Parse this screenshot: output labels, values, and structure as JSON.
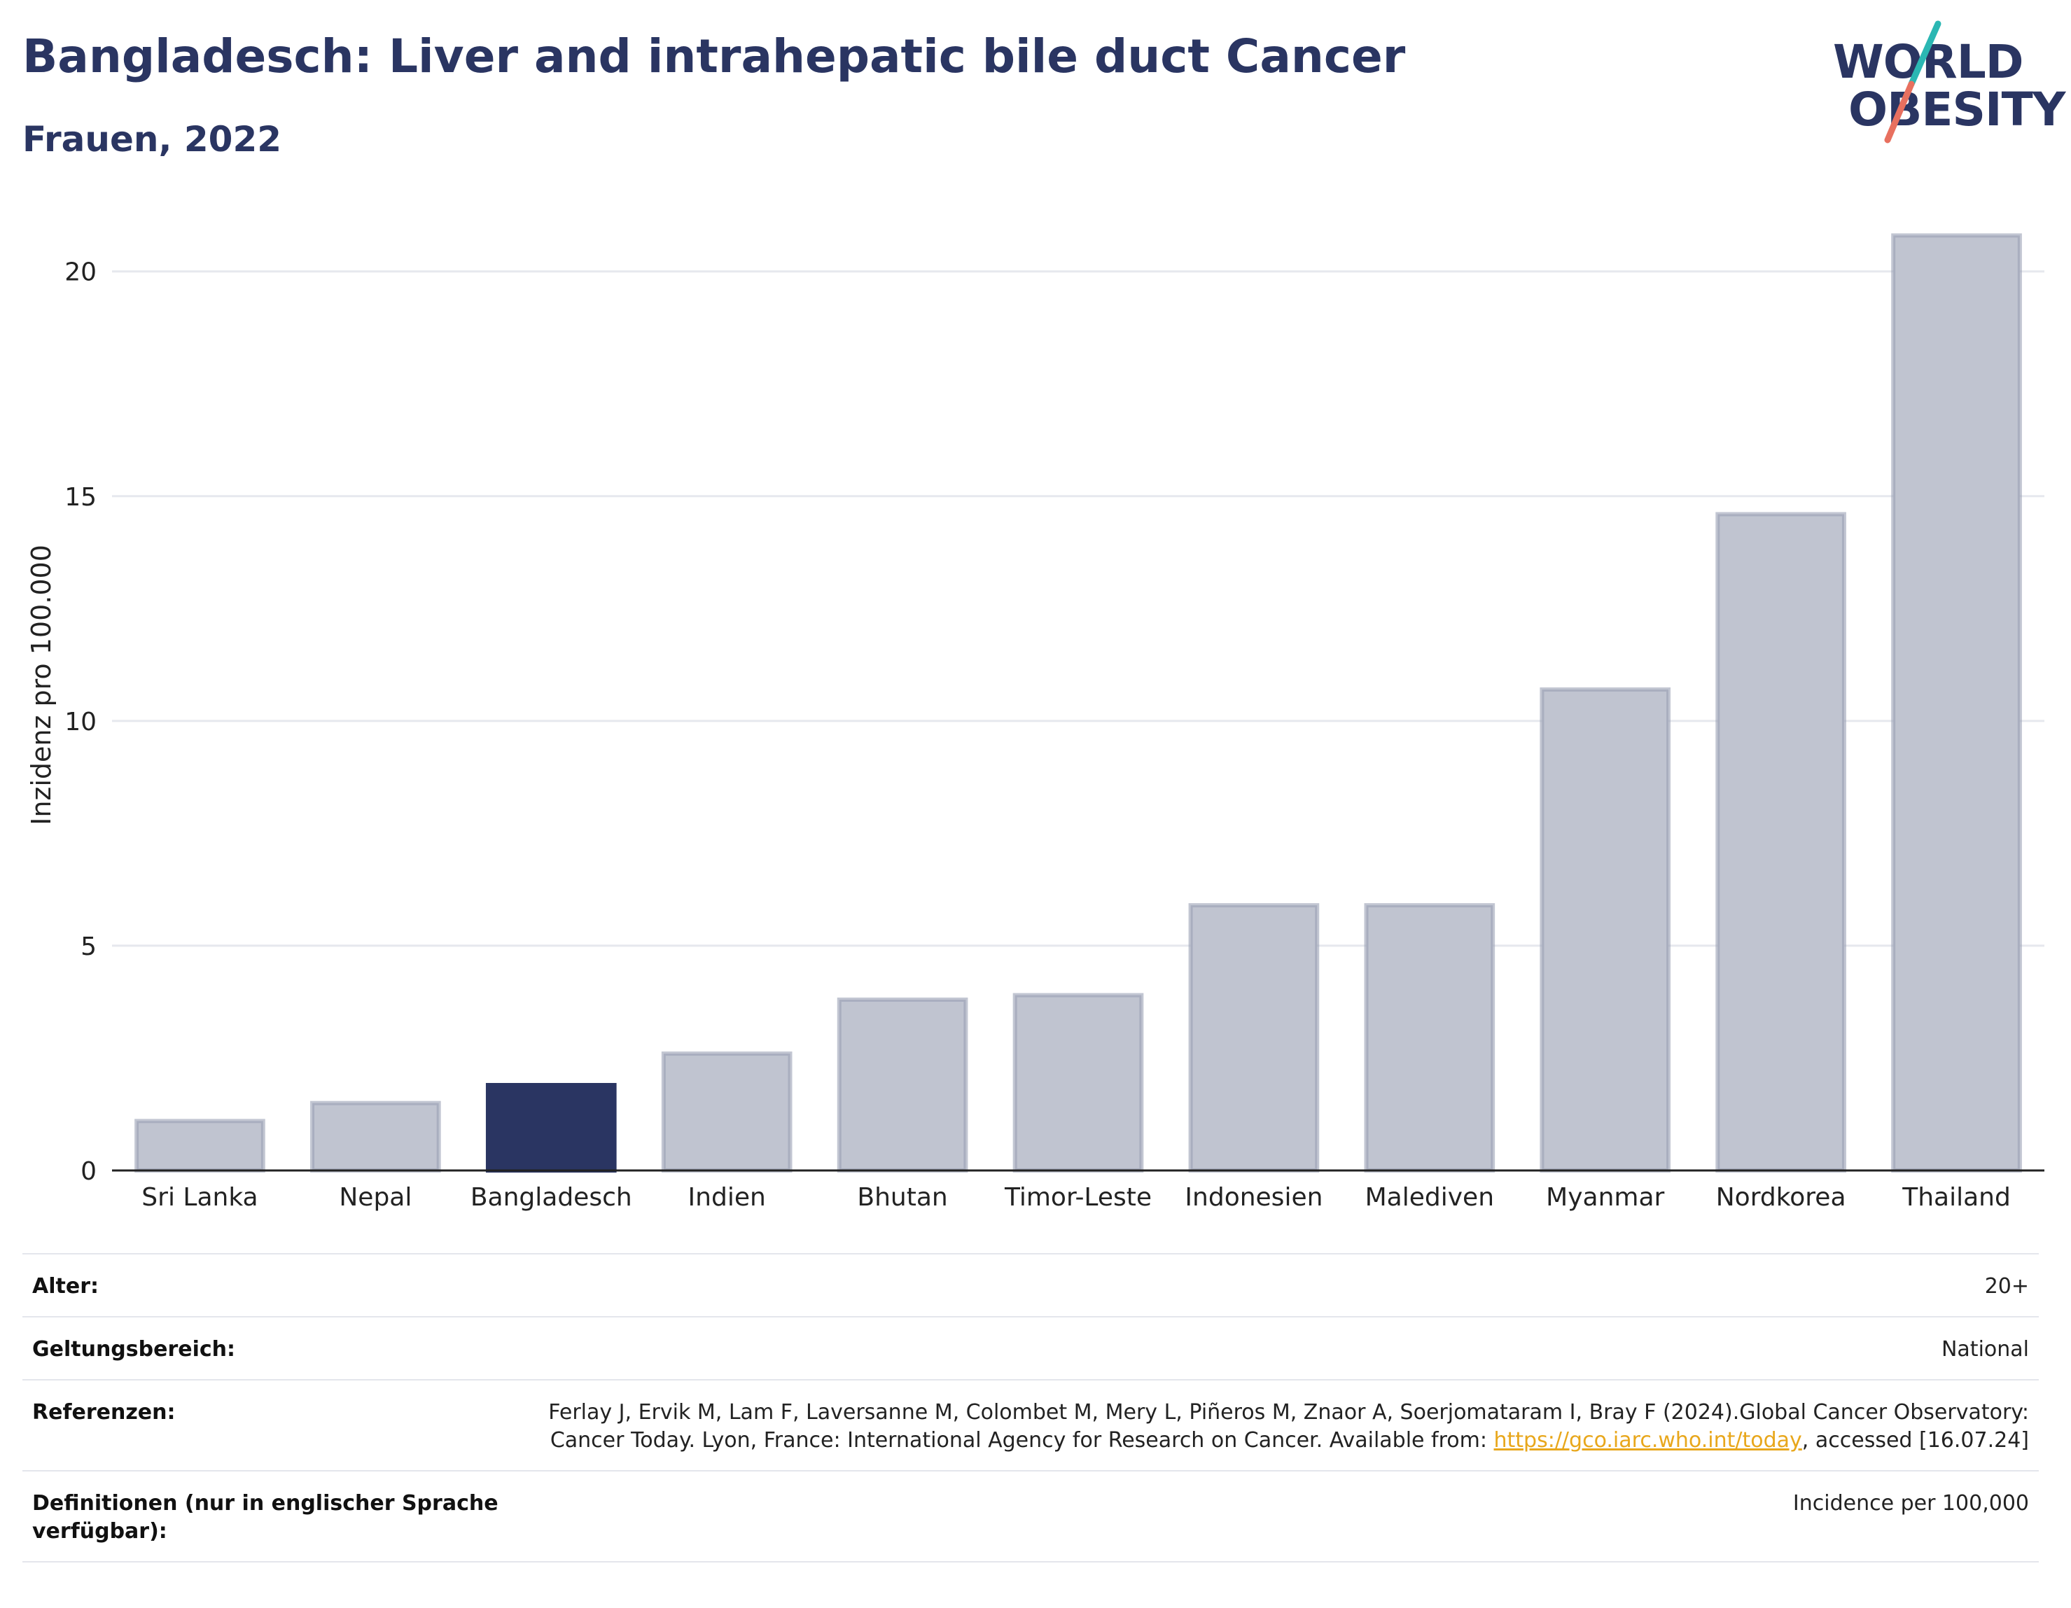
{
  "header": {
    "title": "Bangladesch: Liver and intrahepatic bile duct Cancer",
    "subtitle": "Frauen, 2022"
  },
  "logo": {
    "line1": "WORLD",
    "line2": "OBESITY",
    "colors": {
      "text": "#2a3562",
      "slash_top": "#2bb7b3",
      "slash_bottom": "#e8705f"
    }
  },
  "colors": {
    "highlight": "#2a3562",
    "bar": "#c0c4d0",
    "bar_stroke": "#9aa0b4",
    "grid": "#e6e8ee",
    "link": "#e8a71c"
  },
  "chart_data": {
    "type": "bar",
    "categories": [
      "Sri Lanka",
      "Nepal",
      "Bangladesch",
      "Indien",
      "Bhutan",
      "Timor-Leste",
      "Indonesien",
      "Malediven",
      "Myanmar",
      "Nordkorea",
      "Thailand"
    ],
    "values": [
      1.1,
      1.5,
      1.9,
      2.6,
      3.8,
      3.9,
      5.9,
      5.9,
      10.7,
      14.6,
      20.8
    ],
    "highlight": "Bangladesch",
    "ylabel": "Inzidenz pro 100.000",
    "yticks": [
      0,
      5,
      10,
      15,
      20
    ],
    "ylim": [
      0,
      21.6
    ],
    "grid": true
  },
  "info": {
    "rows": [
      {
        "label": "Alter:",
        "value": "20+"
      },
      {
        "label": "Geltungsbereich:",
        "value": "National"
      },
      {
        "label": "Referenzen:",
        "value_pre": "Ferlay J, Ervik M, Lam F, Laversanne M, Colombet M, Mery L, Piñeros M, Znaor A, Soerjomataram I, Bray F (2024).Global Cancer Observatory: Cancer Today. Lyon, France: International Agency for Research on Cancer. Available from: ",
        "link": "https://gco.iarc.who.int/today",
        "value_post": ", accessed [16.07.24]"
      },
      {
        "label": "Definitionen (nur in englischer Sprache verfügbar):",
        "value": "Incidence per 100,000"
      }
    ]
  }
}
